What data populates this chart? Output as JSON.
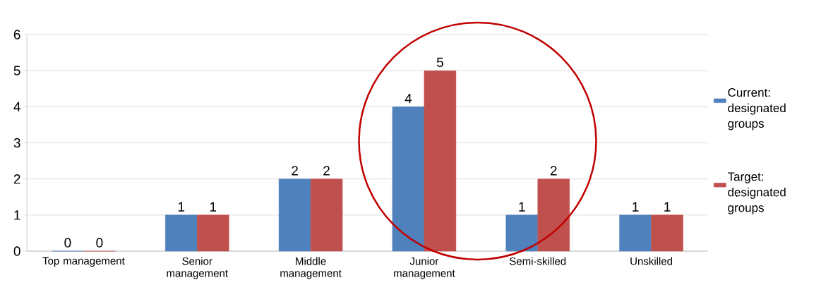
{
  "chart_data": {
    "type": "bar",
    "categories": [
      "Top management",
      "Senior management",
      "Middle management",
      "Junior management",
      "Semi-skilled",
      "Unskilled"
    ],
    "series": [
      {
        "name": "Current: designated groups",
        "color": "#4f81bd",
        "values": [
          0,
          1,
          2,
          4,
          1,
          1
        ]
      },
      {
        "name": "Target: designated groups",
        "color": "#c0504d",
        "values": [
          0,
          1,
          2,
          5,
          2,
          1
        ]
      }
    ],
    "ylim": [
      0,
      6
    ],
    "yticks": [
      0,
      1,
      2,
      3,
      4,
      5,
      6
    ],
    "grid": "y",
    "legend": "right",
    "data_labels": true
  }
}
